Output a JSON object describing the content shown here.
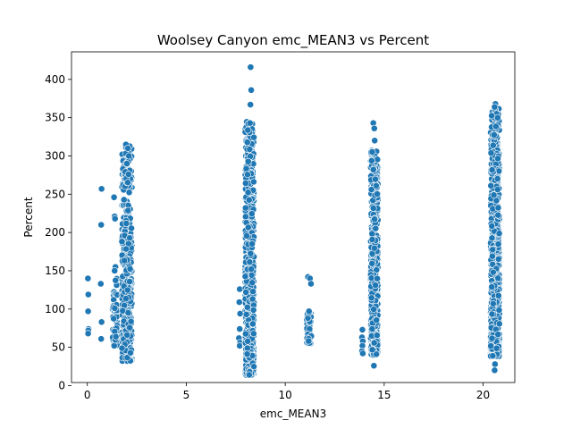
{
  "chart_data": {
    "type": "scatter",
    "title": "Woolsey Canyon emc_MEAN3 vs Percent",
    "xlabel": "emc_MEAN3",
    "ylabel": "Percent",
    "xlim": [
      -0.8,
      21.6
    ],
    "ylim": [
      4,
      436
    ],
    "xticks": [
      0,
      5,
      10,
      15,
      20
    ],
    "yticks": [
      0,
      50,
      100,
      150,
      200,
      250,
      300,
      350,
      400
    ],
    "grid": false,
    "legend": "none",
    "marker_color": "#1f77b4",
    "marker_edge": "#ffffff",
    "clusters": [
      {
        "x": 0.05,
        "xspread": 0.05,
        "points": [
          [
            0.03,
            140
          ],
          [
            0.05,
            119
          ],
          [
            0.04,
            97
          ],
          [
            0.06,
            74
          ],
          [
            0.05,
            72
          ],
          [
            0.04,
            68
          ]
        ]
      },
      {
        "x": 0.7,
        "xspread": 0.05,
        "points": [
          [
            0.72,
            257
          ],
          [
            0.7,
            210
          ],
          [
            0.68,
            133
          ],
          [
            0.72,
            83
          ],
          [
            0.7,
            61
          ]
        ]
      },
      {
        "x": 1.4,
        "xspread": 0.12,
        "ymin": 52,
        "ymax": 155,
        "n": 70,
        "points": [
          [
            1.35,
            246
          ],
          [
            1.38,
            221
          ],
          [
            1.4,
            218
          ],
          [
            1.42,
            155
          ],
          [
            1.38,
            150
          ]
        ]
      },
      {
        "x": 2.0,
        "xspread": 0.25,
        "ymin": 32,
        "ymax": 315,
        "n": 450,
        "points": [
          [
            1.95,
            315
          ],
          [
            2.05,
            310
          ],
          [
            2.1,
            300
          ],
          [
            2.0,
            290
          ],
          [
            2.08,
            276
          ]
        ]
      },
      {
        "x": 7.7,
        "xspread": 0.06,
        "points": [
          [
            7.7,
            126
          ],
          [
            7.68,
            109
          ],
          [
            7.72,
            94
          ],
          [
            7.7,
            74
          ],
          [
            7.66,
            62
          ],
          [
            7.72,
            56
          ],
          [
            7.7,
            52
          ]
        ]
      },
      {
        "x": 8.2,
        "xspread": 0.22,
        "ymin": 14,
        "ymax": 345,
        "n": 700,
        "points": [
          [
            8.25,
            416
          ],
          [
            8.28,
            386
          ],
          [
            8.24,
            367
          ],
          [
            8.22,
            343
          ],
          [
            8.2,
            18
          ],
          [
            8.18,
            14
          ]
        ]
      },
      {
        "x": 11.2,
        "xspread": 0.12,
        "ymin": 55,
        "ymax": 98,
        "n": 60,
        "points": [
          [
            11.15,
            142
          ],
          [
            11.25,
            140
          ],
          [
            11.3,
            133
          ],
          [
            11.2,
            97
          ]
        ]
      },
      {
        "x": 13.9,
        "xspread": 0.05,
        "points": [
          [
            13.9,
            73
          ],
          [
            13.88,
            63
          ],
          [
            13.92,
            58
          ],
          [
            13.9,
            52
          ],
          [
            13.88,
            45
          ],
          [
            13.92,
            42
          ]
        ]
      },
      {
        "x": 14.5,
        "xspread": 0.18,
        "ymin": 40,
        "ymax": 307,
        "n": 650,
        "points": [
          [
            14.45,
            343
          ],
          [
            14.5,
            336
          ],
          [
            14.52,
            320
          ],
          [
            14.48,
            26
          ]
        ]
      },
      {
        "x": 20.6,
        "xspread": 0.22,
        "ymin": 38,
        "ymax": 362,
        "n": 750,
        "points": [
          [
            20.62,
            368
          ],
          [
            20.58,
            364
          ],
          [
            20.6,
            28
          ],
          [
            20.58,
            20
          ]
        ]
      }
    ]
  }
}
